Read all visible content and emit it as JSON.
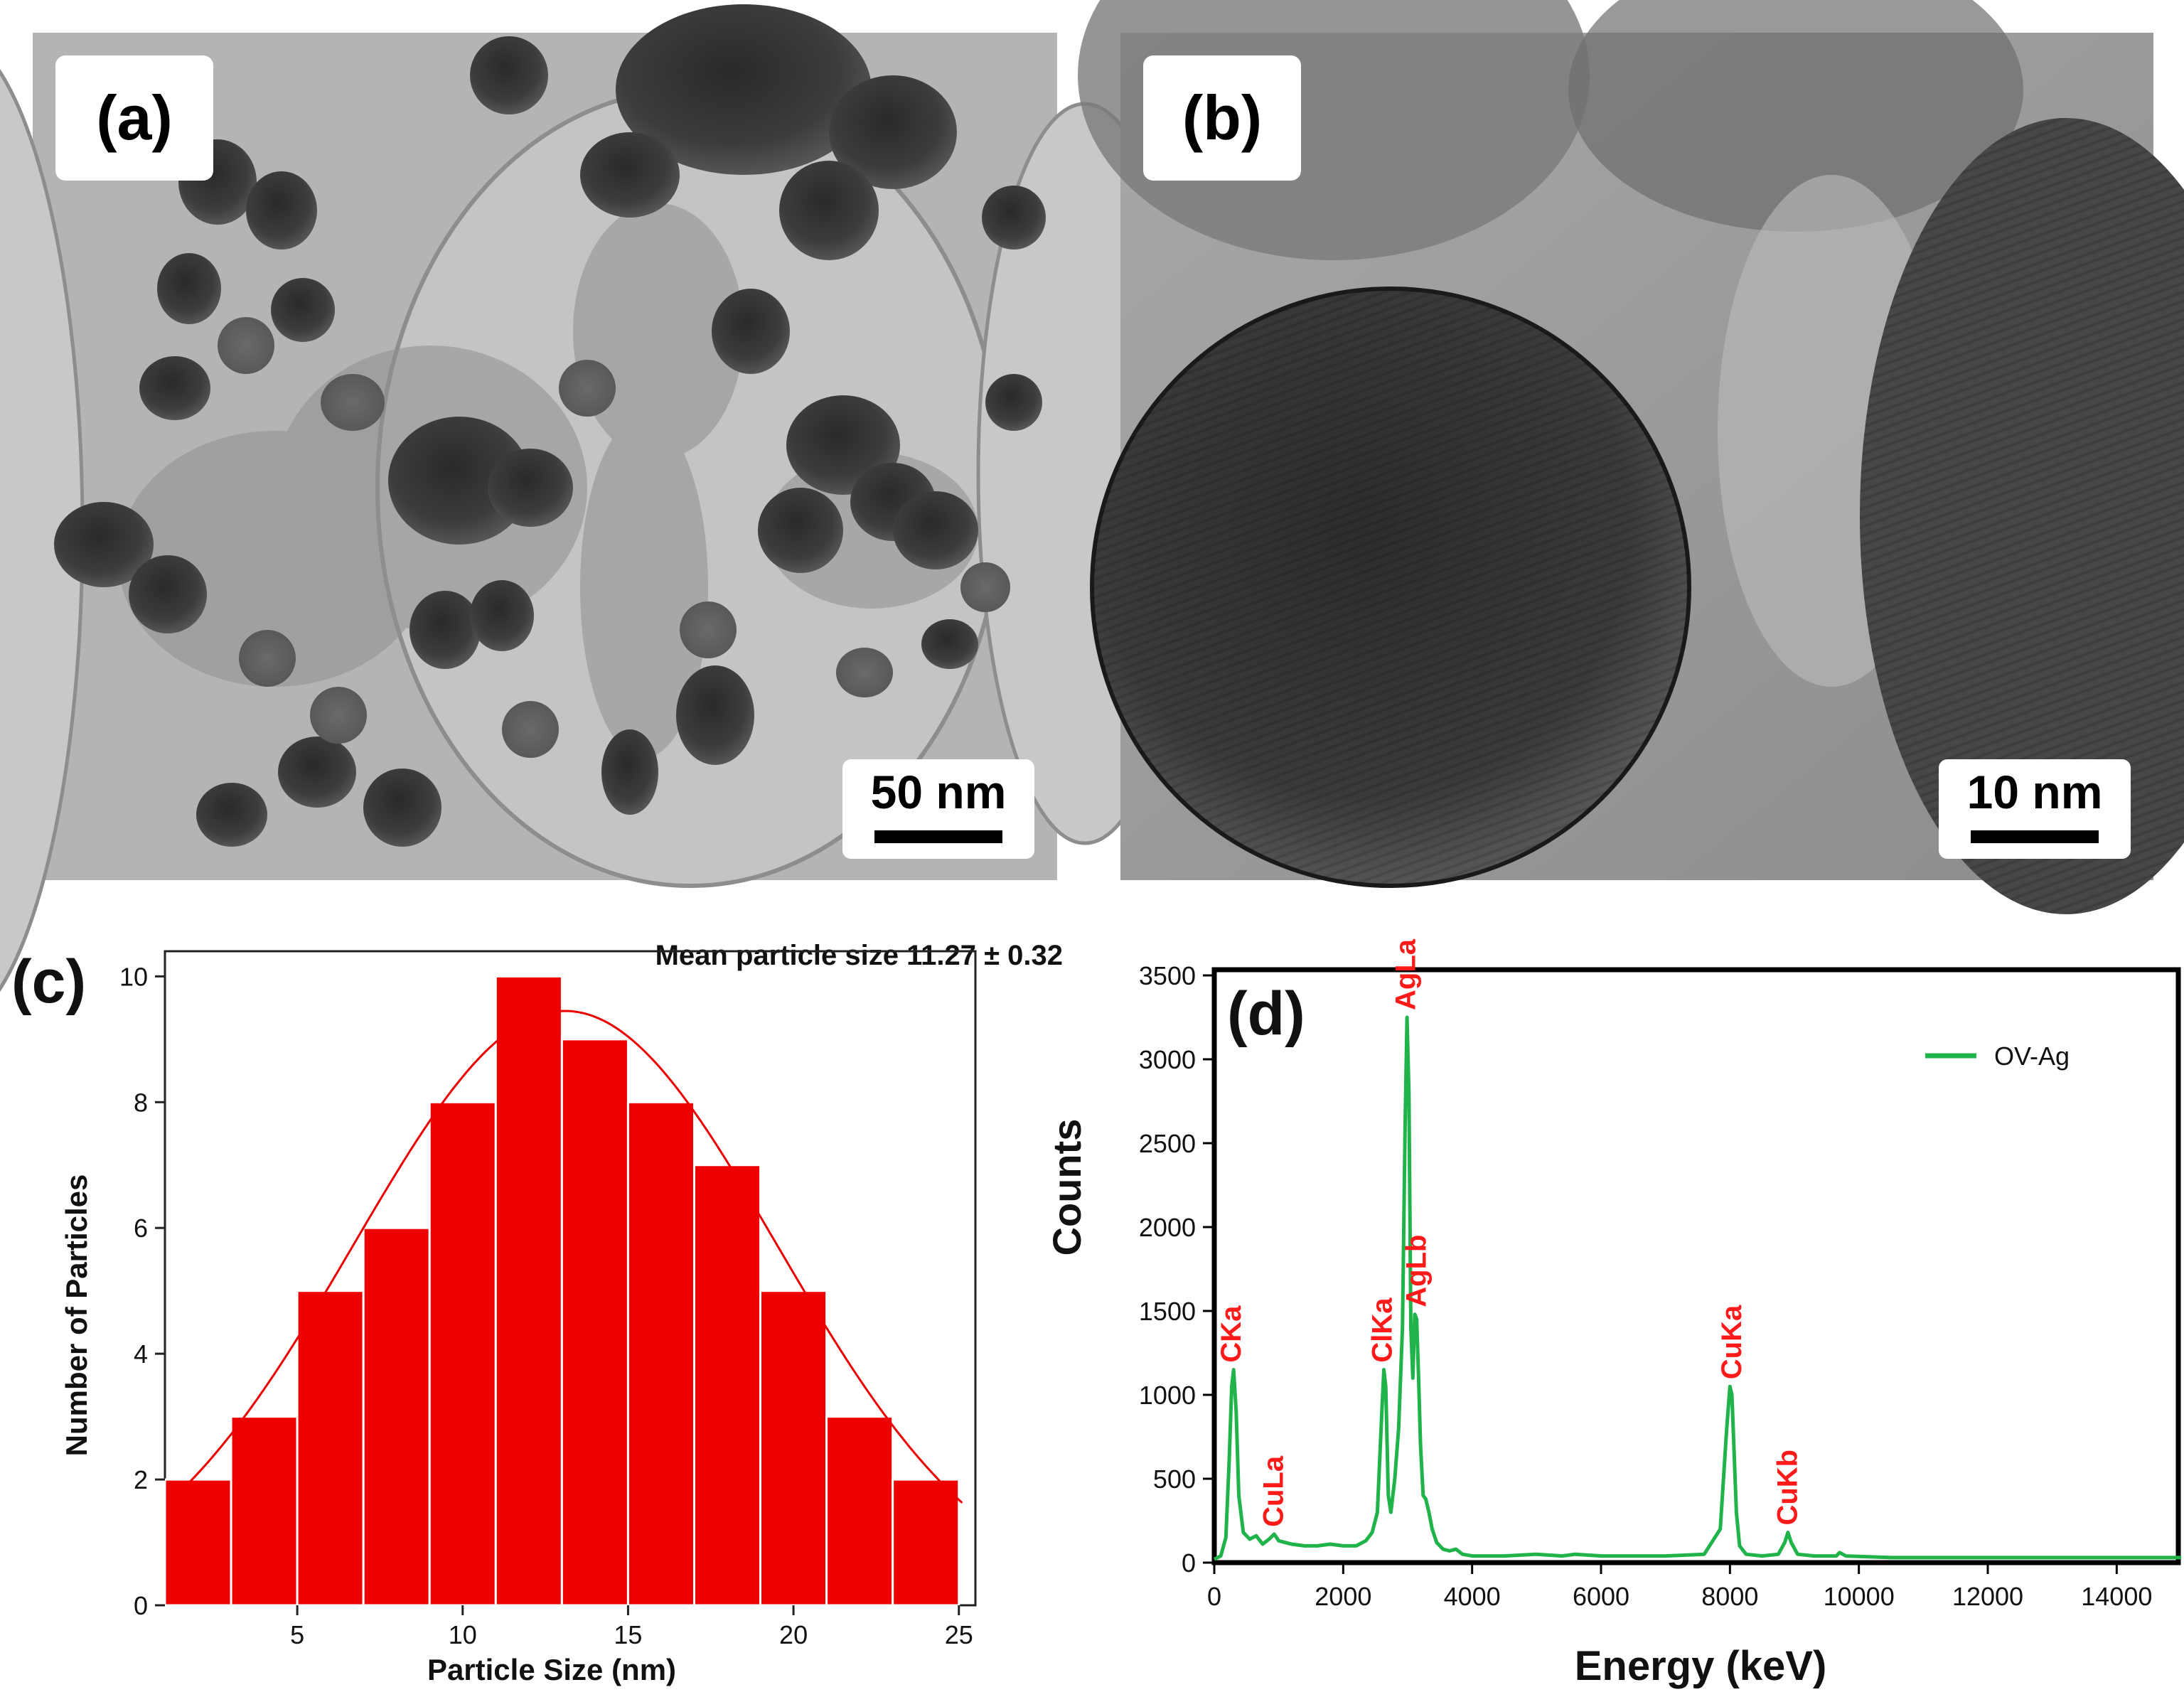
{
  "panel_a": {
    "label": "(a)",
    "scale_bar": "50 nm"
  },
  "panel_b": {
    "label": "(b)",
    "scale_bar": "10 nm"
  },
  "chart_data": [
    {
      "type": "bar",
      "panel_label": "(c)",
      "annotation": "Mean particle size 11.27 ± 0.32",
      "xlabel": "Particle Size (nm)",
      "ylabel": "Number of Particles",
      "x_centers": [
        2,
        4,
        6,
        8,
        10,
        12,
        14,
        16,
        18,
        20,
        22,
        24
      ],
      "values": [
        2,
        3,
        5,
        6,
        8,
        10,
        9,
        8,
        7,
        5,
        3,
        2
      ],
      "bin_width": 2,
      "xlim": [
        1,
        25.5
      ],
      "ylim": [
        0,
        10.4
      ],
      "xticks": [
        5,
        10,
        15,
        20,
        25
      ],
      "yticks": [
        0,
        2,
        4,
        6,
        8,
        10
      ],
      "fit_curve": {
        "type": "gaussian",
        "center": 13.1,
        "amplitude": 9.45,
        "sigma": 6.4
      },
      "colors": {
        "bars": "#ee0000",
        "fit": "#ee0000"
      },
      "grid": false
    },
    {
      "type": "line",
      "panel_label": "(d)",
      "xlabel": "Energy (keV)",
      "ylabel": "Counts",
      "xlim": [
        0,
        15000
      ],
      "ylim": [
        0,
        3500
      ],
      "xticks": [
        0,
        2000,
        4000,
        6000,
        8000,
        10000,
        12000,
        14000
      ],
      "yticks": [
        0,
        500,
        1000,
        1500,
        2000,
        2500,
        3000,
        3500
      ],
      "legend_position": "top-right",
      "series": [
        {
          "name": "OV-Ag",
          "color": "#1fb34a",
          "x": [
            0,
            100,
            180,
            230,
            270,
            300,
            340,
            380,
            450,
            550,
            650,
            750,
            850,
            930,
            1000,
            1100,
            1200,
            1400,
            1600,
            1800,
            2000,
            2200,
            2350,
            2450,
            2530,
            2600,
            2630,
            2660,
            2700,
            2740,
            2800,
            2860,
            2920,
            2960,
            2990,
            3020,
            3050,
            3080,
            3110,
            3140,
            3170,
            3200,
            3240,
            3280,
            3330,
            3380,
            3450,
            3550,
            3650,
            3750,
            3850,
            4000,
            4500,
            5000,
            5400,
            5600,
            6000,
            7000,
            7600,
            7850,
            7950,
            8000,
            8030,
            8060,
            8100,
            8150,
            8250,
            8500,
            8750,
            8850,
            8900,
            8950,
            9050,
            9300,
            9650,
            9700,
            9800,
            10500,
            12000,
            14000,
            15000
          ],
          "y": [
            20,
            40,
            150,
            600,
            1050,
            1150,
            900,
            400,
            180,
            140,
            160,
            110,
            140,
            170,
            130,
            120,
            110,
            100,
            100,
            110,
            100,
            100,
            130,
            180,
            300,
            900,
            1150,
            1050,
            400,
            300,
            500,
            800,
            1400,
            2600,
            3250,
            2800,
            1400,
            1100,
            1480,
            1450,
            1100,
            700,
            400,
            380,
            300,
            200,
            120,
            80,
            70,
            80,
            50,
            40,
            40,
            50,
            40,
            50,
            40,
            40,
            50,
            200,
            800,
            1050,
            1000,
            700,
            300,
            100,
            50,
            40,
            50,
            120,
            180,
            120,
            50,
            40,
            40,
            60,
            40,
            30,
            30,
            30,
            30
          ]
        }
      ],
      "peak_labels": [
        {
          "text": "CKa",
          "x": 277,
          "y": 1150
        },
        {
          "text": "CuLa",
          "x": 930,
          "y": 170
        },
        {
          "text": "ClKa",
          "x": 2622,
          "y": 1150
        },
        {
          "text": "AgLa",
          "x": 2984,
          "y": 3250
        },
        {
          "text": "AgLb",
          "x": 3151,
          "y": 1480
        },
        {
          "text": "CuKa",
          "x": 8040,
          "y": 1050
        },
        {
          "text": "CuKb",
          "x": 8905,
          "y": 180
        }
      ],
      "colors": {
        "peak_labels": "#ff1a1a"
      },
      "grid": false
    }
  ]
}
